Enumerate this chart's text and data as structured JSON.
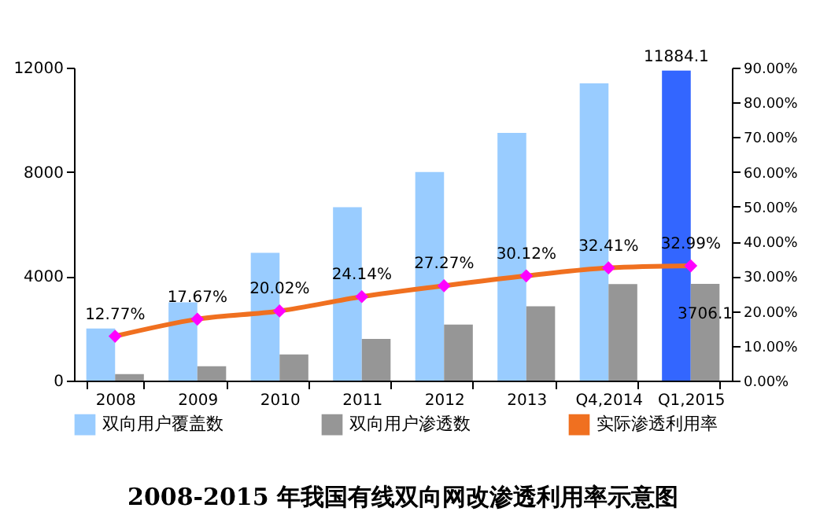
{
  "chart_data": {
    "type": "bar",
    "title": "2008-2015 年我国有线双向网改渗透利用率示意图",
    "categories": [
      "2008",
      "2009",
      "2010",
      "2011",
      "2012",
      "2013",
      "Q4,2014",
      "Q1,2015"
    ],
    "series": [
      {
        "name": "双向用户覆盖数",
        "color": "#99ccff",
        "colors": [
          "#99ccff",
          "#99ccff",
          "#99ccff",
          "#99ccff",
          "#99ccff",
          "#99ccff",
          "#99ccff",
          "#3366ff"
        ],
        "values": [
          2000,
          3000,
          4900,
          6650,
          8000,
          9500,
          11400,
          11884.1
        ],
        "value_labels": [
          null,
          null,
          null,
          null,
          null,
          null,
          null,
          "11884.1"
        ]
      },
      {
        "name": "双向用户渗透数",
        "color": "#969696",
        "values": [
          250,
          550,
          1000,
          1600,
          2150,
          2850,
          3700,
          3706.1
        ],
        "value_labels": [
          null,
          null,
          null,
          null,
          null,
          null,
          null,
          "3706.1"
        ]
      },
      {
        "name": "实际渗透利用率",
        "type": "line",
        "axis": "y2",
        "color": "#f07020",
        "colors": [
          "#ff00ff",
          "#ff00ff",
          "#ff00ff",
          "#ff00ff",
          "#ff00ff",
          "#ff00ff",
          "#ff00ff",
          "#ff00ff"
        ],
        "marker": "diamond",
        "values": [
          12.77,
          17.67,
          20.02,
          24.14,
          27.27,
          30.12,
          32.41,
          32.99
        ],
        "value_labels": [
          "12.77%",
          "17.67%",
          "20.02%",
          "24.14%",
          "27.27%",
          "30.12%",
          "32.41%",
          "32.99%"
        ]
      }
    ],
    "ylim": [
      0,
      12000
    ],
    "yticks": [
      0,
      4000,
      8000,
      12000
    ],
    "y2lim": [
      0,
      90
    ],
    "y2ticks": [
      {
        "value": 0,
        "label": "0.00%"
      },
      {
        "value": 10,
        "label": "10.00%"
      },
      {
        "value": 20,
        "label": "20.00%"
      },
      {
        "value": 30,
        "label": "30.00%"
      },
      {
        "value": 40,
        "label": "40.00%"
      },
      {
        "value": 50,
        "label": "50.00%"
      },
      {
        "value": 60,
        "label": "60.00%"
      },
      {
        "value": 70,
        "label": "70.00%"
      },
      {
        "value": 80,
        "label": "80.00%"
      },
      {
        "value": 90,
        "label": "90.00%"
      }
    ],
    "legend": "bottom",
    "grid": false
  }
}
